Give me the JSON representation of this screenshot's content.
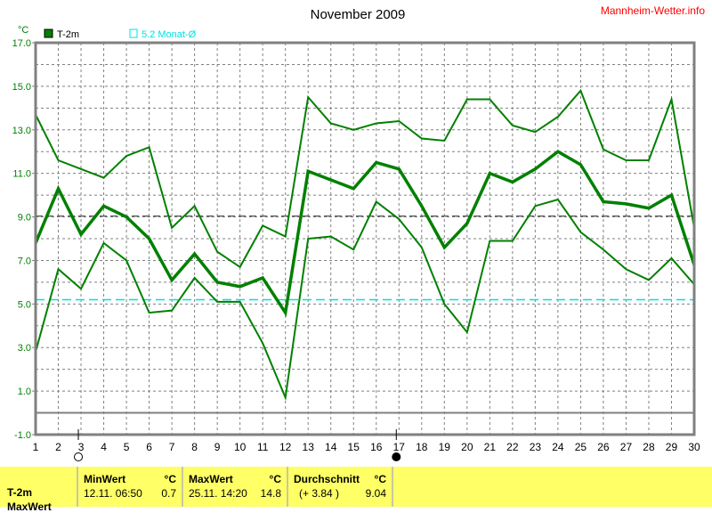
{
  "header": {
    "title": "November 2009",
    "brand": "Mannheim-Wetter.info"
  },
  "legend": {
    "unit": "°C",
    "series_label": "T-2m",
    "ref_label": "5.2 Monat-Ø"
  },
  "colors": {
    "series": "#008000",
    "reference": "#00e0e0",
    "average": "#606060",
    "brand": "#ff0000",
    "panel": "#ffff66"
  },
  "chart_data": {
    "type": "line",
    "title": "November 2009",
    "ylabel": "°C",
    "ylim": [
      -1,
      17
    ],
    "yticks": [
      "17.0",
      "15.0",
      "13.0",
      "11.0",
      "9.0",
      "7.0",
      "5.0",
      "3.0",
      "1.0",
      "-1.0"
    ],
    "x": [
      1,
      2,
      3,
      4,
      5,
      6,
      7,
      8,
      9,
      10,
      11,
      12,
      13,
      14,
      15,
      16,
      17,
      18,
      19,
      20,
      21,
      22,
      23,
      24,
      25,
      26,
      27,
      28,
      29,
      30
    ],
    "grid": true,
    "series": [
      {
        "role": "max",
        "values": [
          13.7,
          11.6,
          11.2,
          10.8,
          11.8,
          12.2,
          8.5,
          9.5,
          7.4,
          6.7,
          8.6,
          8.1,
          14.5,
          13.3,
          13.0,
          13.3,
          13.4,
          12.6,
          12.5,
          14.4,
          14.4,
          13.2,
          12.9,
          13.6,
          14.8,
          12.1,
          11.6,
          11.6,
          14.4,
          8.5
        ]
      },
      {
        "name": "T-2m",
        "role": "mean",
        "values": [
          7.8,
          10.3,
          8.2,
          9.5,
          9.0,
          8.0,
          6.1,
          7.3,
          6.0,
          5.8,
          6.2,
          4.6,
          11.1,
          10.7,
          10.3,
          11.5,
          11.2,
          9.5,
          7.6,
          8.7,
          11.0,
          10.6,
          11.2,
          12.0,
          11.4,
          9.7,
          9.6,
          9.4,
          10.0,
          6.8
        ]
      },
      {
        "role": "min",
        "values": [
          2.8,
          6.6,
          5.7,
          7.8,
          7.0,
          4.6,
          4.7,
          6.2,
          5.1,
          5.1,
          3.2,
          0.7,
          8.0,
          8.1,
          7.5,
          9.7,
          8.9,
          7.6,
          5.0,
          3.7,
          7.9,
          7.9,
          9.5,
          9.8,
          8.3,
          7.5,
          6.6,
          6.1,
          7.1,
          5.9
        ]
      }
    ],
    "reference_lines": [
      {
        "value": 5.2,
        "label": "5.2 Monat-Ø",
        "color": "#00e0e0"
      },
      {
        "value": 9.04,
        "color": "#606060"
      },
      {
        "value": 0,
        "color": "#808080"
      }
    ],
    "moon_phases": [
      {
        "day": 3,
        "phase": "new-moon-open-circle"
      },
      {
        "day": 17,
        "phase": "full-moon-filled-circle"
      }
    ]
  },
  "stats": {
    "row_label": "T-2m",
    "row2_label": "MaxWert",
    "min": {
      "header": "MinWert",
      "unit": "°C",
      "date": "12.11.  06:50",
      "value": "0.7"
    },
    "max": {
      "header": "MaxWert",
      "unit": "°C",
      "date": "25.11.  14:20",
      "value": "14.8"
    },
    "avg": {
      "header": "Durchschnitt",
      "unit": "°C",
      "deviation": "(+ 3.84 )",
      "value": "9.04"
    }
  }
}
